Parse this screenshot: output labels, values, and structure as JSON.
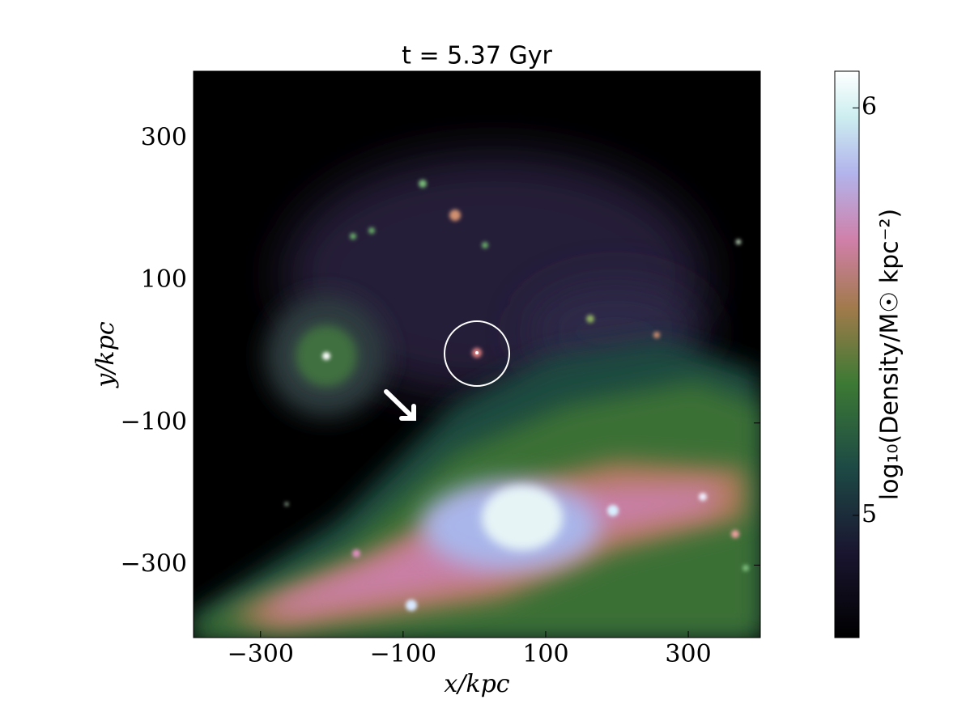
{
  "chart_data": {
    "type": "image",
    "title": "t = 5.37 Gyr",
    "x_label": "x/kpc",
    "y_label": "y/kpc",
    "xlim": [
      -394,
      401
    ],
    "ylim": [
      -402,
      395
    ],
    "xticks": [
      {
        "value": -300,
        "label": "−300"
      },
      {
        "value": -100,
        "label": "−100"
      },
      100,
      300
    ],
    "yticks": [
      {
        "value": -300,
        "label": "−300"
      },
      {
        "value": -100,
        "label": "−100"
      },
      100,
      300
    ],
    "colorbar": {
      "lim": [
        4.7,
        6.09
      ],
      "ticks": [
        5,
        6
      ],
      "label": "log₁₀(Density/M☉ kpc⁻²)"
    }
  }
}
